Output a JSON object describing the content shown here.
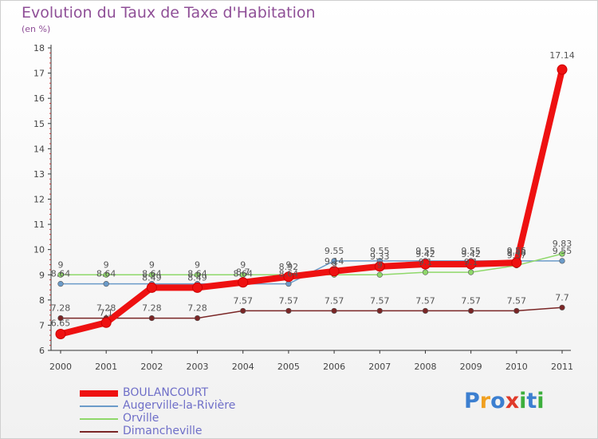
{
  "chart_data": {
    "type": "line",
    "title": "Evolution du Taux de Taxe d'Habitation",
    "subtitle": "(en %)",
    "xlabel": "",
    "ylabel": "",
    "ylim": [
      6,
      18
    ],
    "yticks": [
      6,
      7,
      8,
      9,
      10,
      11,
      12,
      13,
      14,
      15,
      16,
      17,
      18
    ],
    "x": [
      "2000",
      "2001",
      "2002",
      "2003",
      "2004",
      "2005",
      "2006",
      "2007",
      "2008",
      "2009",
      "2010",
      "2011"
    ],
    "series": [
      {
        "name": "Augerville-la-Rivière",
        "color": "#6b9bc9",
        "values": [
          8.64,
          8.64,
          8.64,
          8.64,
          8.64,
          8.64,
          9.55,
          9.55,
          9.55,
          9.55,
          9.55,
          9.55
        ],
        "labels": [
          "8.64",
          "8.64",
          "8.64",
          "8.64",
          "8.64",
          "8.64",
          "9.55",
          "9.55",
          "9.55",
          "9.55",
          "9.55",
          "9.55"
        ]
      },
      {
        "name": "Orville",
        "color": "#8fd86a",
        "values": [
          9,
          9,
          9,
          9,
          9,
          9,
          9,
          9,
          9.1,
          9.1,
          9.37,
          9.83
        ],
        "labels": [
          "9",
          "9",
          "9",
          "9",
          "9",
          "9",
          "9",
          "9",
          "9.1",
          "9.1",
          "9.37",
          "9.83"
        ]
      },
      {
        "name": "Dimancheville",
        "color": "#7a2626",
        "values": [
          7.28,
          7.28,
          7.28,
          7.28,
          7.57,
          7.57,
          7.57,
          7.57,
          7.57,
          7.57,
          7.57,
          7.7
        ],
        "labels": [
          "7.28",
          "7.28",
          "7.28",
          "7.28",
          "7.57",
          "7.57",
          "7.57",
          "7.57",
          "7.57",
          "7.57",
          "7.57",
          "7.7"
        ]
      },
      {
        "name": "BOULANCOURT",
        "color": "#ee1111",
        "values": [
          6.65,
          7.1,
          8.49,
          8.49,
          8.7,
          8.92,
          9.14,
          9.33,
          9.42,
          9.42,
          9.48,
          17.14
        ],
        "labels": [
          "6.65",
          "7.1",
          "8.49",
          "8.49",
          "8.7",
          "8.92",
          "9.14",
          "9.33",
          "9.42",
          "9.42",
          "9.48",
          "17.14"
        ]
      }
    ],
    "legend": [
      "BOULANCOURT",
      "Augerville-la-Rivière",
      "Orville",
      "Dimancheville"
    ]
  },
  "brand": {
    "letters": [
      "P",
      "r",
      "o",
      "x",
      "i",
      "t",
      "i"
    ],
    "colors": [
      "#3c7fd0",
      "#f0a020",
      "#3c7fd0",
      "#e03a2a",
      "#3cae3c",
      "#3c7fd0",
      "#3cae3c"
    ]
  }
}
